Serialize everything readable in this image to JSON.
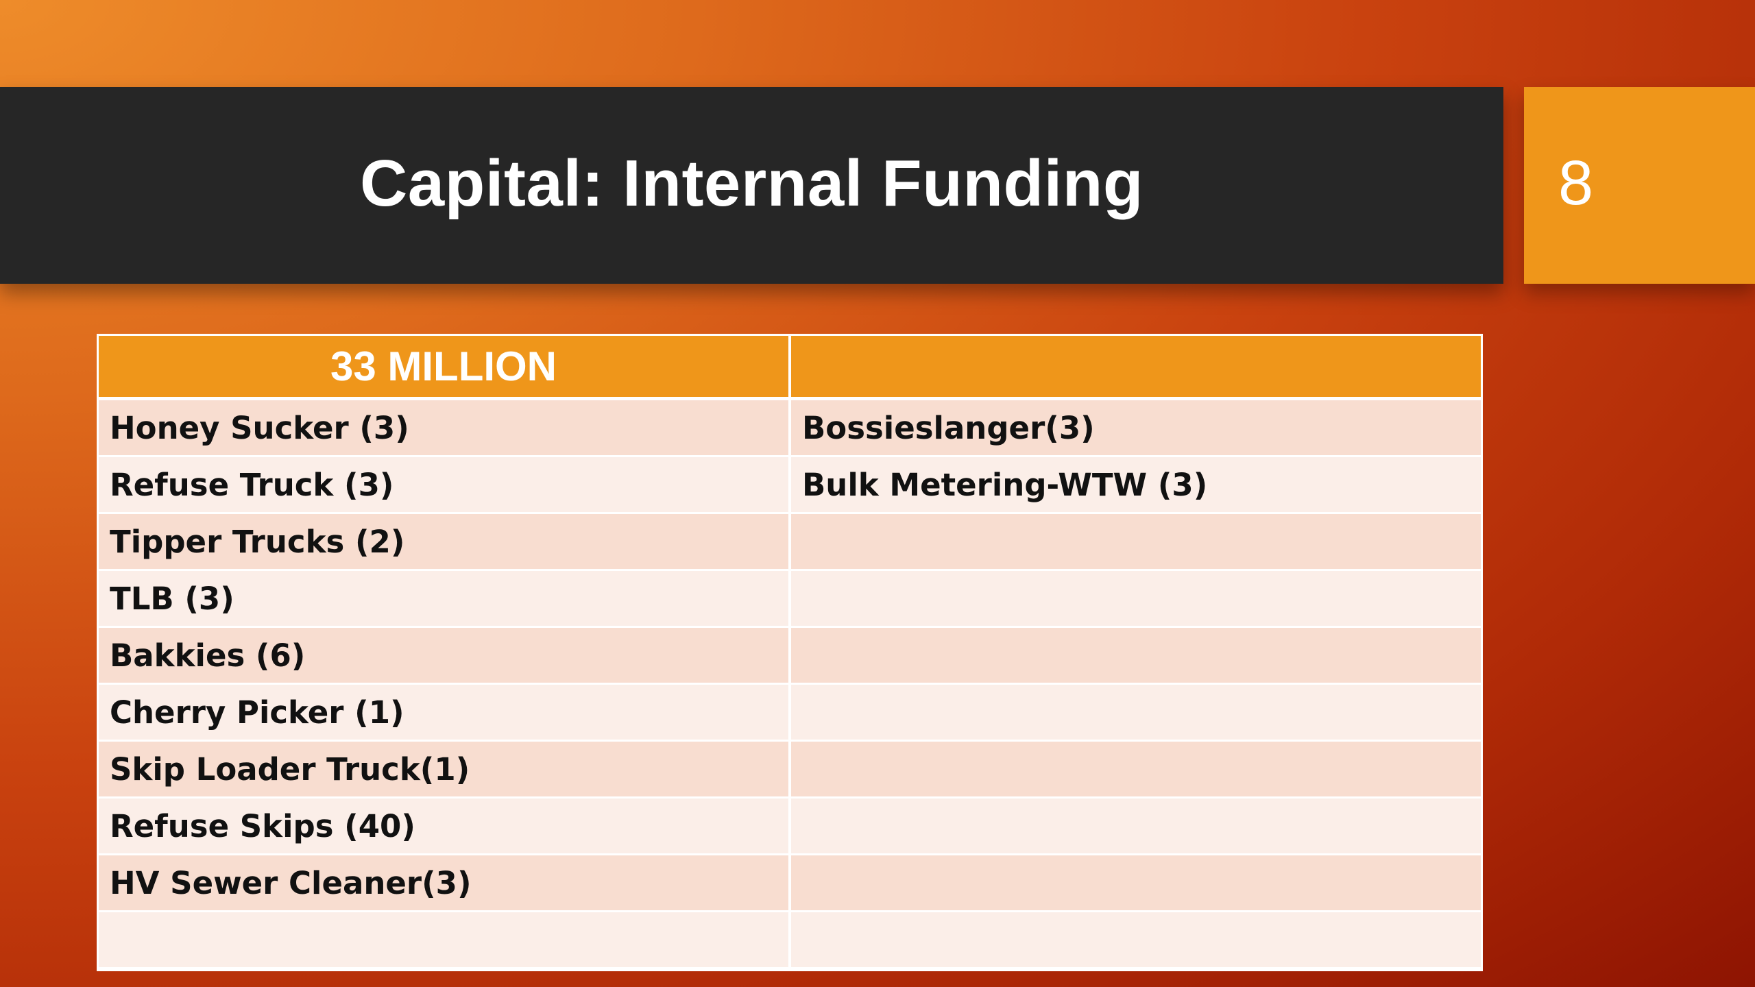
{
  "slide": {
    "title": "Capital: Internal Funding",
    "page_number": "8"
  },
  "table": {
    "headers": [
      "33 MILLION",
      ""
    ],
    "rows": [
      [
        "Honey Sucker (3)",
        "Bossieslanger(3)"
      ],
      [
        "Refuse Truck (3)",
        "Bulk Metering-WTW (3)"
      ],
      [
        "Tipper Trucks (2)",
        ""
      ],
      [
        "TLB (3)",
        ""
      ],
      [
        "Bakkies (6)",
        ""
      ],
      [
        "Cherry Picker (1)",
        ""
      ],
      [
        "Skip Loader Truck(1)",
        ""
      ],
      [
        "Refuse Skips (40)",
        ""
      ],
      [
        "HV Sewer Cleaner(3)",
        ""
      ],
      [
        "",
        ""
      ]
    ]
  },
  "colors": {
    "title_bar": "#262626",
    "accent_orange": "#ef961a",
    "row_shade_dark": "#f8ddd0",
    "row_shade_light": "#fbeee8"
  }
}
